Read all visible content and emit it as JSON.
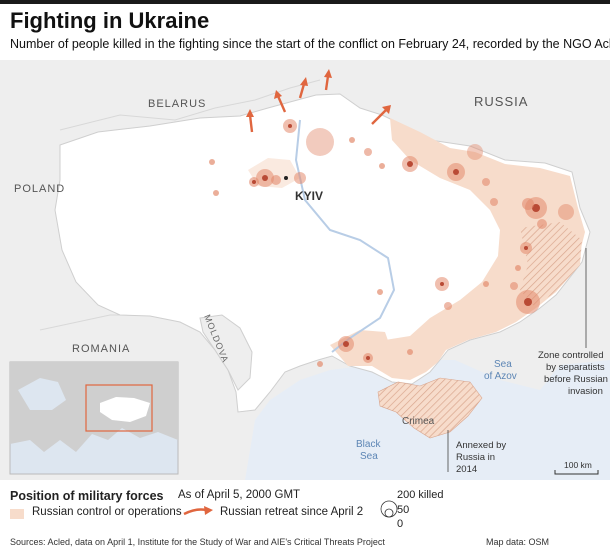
{
  "header": {
    "title": "Fighting in Ukraine",
    "subtitle": "Number of people killed in the fighting since the start of the conflict on February 24, recorded by the NGO Acled"
  },
  "map": {
    "countries": {
      "belarus": "BELARUS",
      "russia": "RUSSIA",
      "poland": "POLAND",
      "romania": "ROMANIA",
      "moldova": "MOLDOVA"
    },
    "cities": {
      "kyiv": "KYIV"
    },
    "regions": {
      "crimea": "Crimea"
    },
    "seas": {
      "sea_of_azov_line1": "Sea",
      "sea_of_azov_line2": "of Azov",
      "black_sea_line1": "Black",
      "black_sea_line2": "Sea"
    },
    "annotations": {
      "separatist_line1": "Zone controlled",
      "separatist_line2": "by separatists",
      "separatist_line3": "before Russian",
      "separatist_line4": "invasion",
      "annexed_line1": "Annexed by",
      "annexed_line2": "Russia in",
      "annexed_line3": "2014"
    },
    "scale": "100 km",
    "colors": {
      "water": "#e6edf6",
      "land": "#eeeeee",
      "ukraine": "#ffffff",
      "russian_control": "#f7dccb",
      "bubble": "#e38b6e",
      "bubble_core": "#b94a35",
      "arrow": "#e0663f",
      "water_label": "#5d86b5"
    }
  },
  "legend": {
    "title": "Position of military forces",
    "as_of": "As of April 5, 2000 GMT",
    "russian_control": "Russian control or operations",
    "russian_retreat": "Russian retreat since April 2",
    "killed_200": "200 killed",
    "killed_50": "50",
    "killed_0": "0"
  },
  "footer": {
    "sources": "Sources: Acled, data on April 1, Institute for the Study of War and AIE's Critical Threats Project",
    "map_data": "Map data: OSM"
  }
}
